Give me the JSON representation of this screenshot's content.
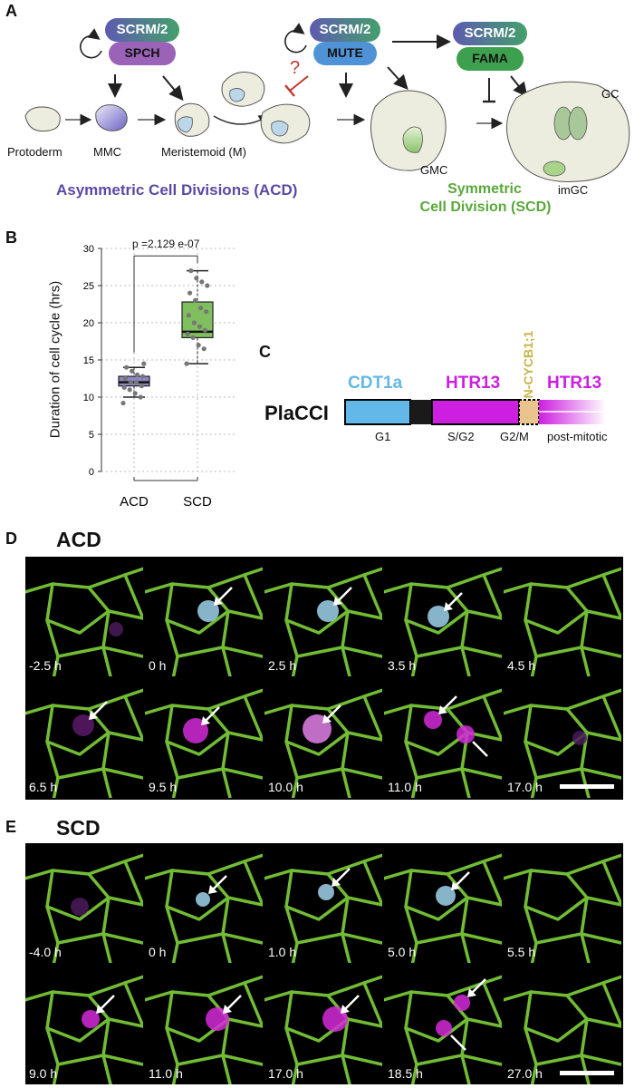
{
  "panels": {
    "A": "A",
    "B": "B",
    "C": "C",
    "D": "D",
    "E": "E"
  },
  "panelA": {
    "reg1_top": "SCRM/2",
    "reg1_bottom": "SPCH",
    "reg2_top": "SCRM/2",
    "reg2_bottom": "MUTE",
    "reg3_top": "SCRM/2",
    "reg3_bottom": "FAMA",
    "question": "?",
    "labels": {
      "protoderm": "Protoderm",
      "mmc": "MMC",
      "meristemoid": "Meristemoid (M)",
      "gmc": "GMC",
      "gc": "GC",
      "imgc": "imGC"
    },
    "acd_title": "Asymmetric Cell Divisions (ACD)",
    "scd_title_1": "Symmetric",
    "scd_title_2": "Cell Division (SCD)",
    "colors": {
      "purple": "#5b4aa3",
      "green": "#5aa83c",
      "red": "#c0392b"
    }
  },
  "panelB": {
    "ylabel": "Duration of cell cycle (hrs)",
    "pvalue": "p =2.129 e-07",
    "chart_data": {
      "type": "box",
      "categories": [
        "ACD",
        "SCD"
      ],
      "ylim": [
        0,
        30
      ],
      "yticks": [
        0,
        5,
        10,
        15,
        20,
        25,
        30
      ],
      "grid": true,
      "boxes": [
        {
          "name": "ACD",
          "color": "#8e85c4",
          "whisker_low": 10,
          "q1": 11.5,
          "median": 12,
          "q3": 12.8,
          "whisker_high": 14,
          "points": [
            9.2,
            10,
            10.5,
            11,
            11.3,
            11.5,
            12,
            12,
            12.5,
            12.8,
            13,
            13.5,
            14,
            14.5
          ]
        },
        {
          "name": "SCD",
          "color": "#7fbf5e",
          "whisker_low": 14.5,
          "q1": 18,
          "median": 18.8,
          "q3": 22.8,
          "whisker_high": 27,
          "points": [
            14.5,
            16.5,
            17,
            18,
            18.5,
            19,
            19.5,
            20,
            21,
            21.5,
            22,
            23,
            24,
            25,
            25.5,
            26,
            27
          ]
        }
      ]
    }
  },
  "panelC": {
    "name": "PlaCCI",
    "seg1": "CDT1a",
    "seg2": "HTR13",
    "seg3": "N-CYCB1;1",
    "seg4": "HTR13",
    "phases": [
      "G1",
      "S/G2",
      "G2/M",
      "post-mitotic"
    ],
    "colors": {
      "cdt1a": "#62b8e8",
      "htr13": "#cc1fe0",
      "cycb": "#e9c48f",
      "cycb_text": "#c7b44a"
    }
  },
  "panelD": {
    "title": "ACD",
    "row1": [
      "-2.5 h",
      "0 h",
      "2.5 h",
      "3.5 h",
      "4.5 h"
    ],
    "row2": [
      "6.5 h",
      "9.5 h",
      "10.0 h",
      "11.0 h",
      "17.0 h"
    ]
  },
  "panelE": {
    "title": "SCD",
    "row1": [
      "-4.0 h",
      "0 h",
      "1.0 h",
      "5.0 h",
      "5.5 h"
    ],
    "row2": [
      "9.0 h",
      "11.0 h",
      "17.0 h",
      "18.5 h",
      "27.0 h"
    ]
  }
}
